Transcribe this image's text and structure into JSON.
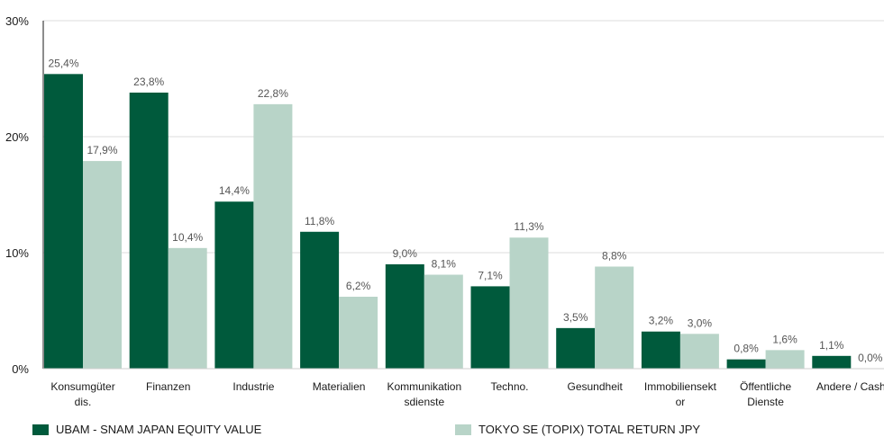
{
  "chart_data": {
    "type": "bar",
    "categories": [
      [
        "Konsumgüter",
        "dis."
      ],
      [
        "Finanzen"
      ],
      [
        "Industrie"
      ],
      [
        "Materialien"
      ],
      [
        "Kommunikation",
        "sdienste"
      ],
      [
        "Techno."
      ],
      [
        "Gesundheit"
      ],
      [
        "Immobiliensekt",
        "or"
      ],
      [
        "Öffentliche",
        "Dienste"
      ],
      [
        "Andere / Cash"
      ]
    ],
    "series": [
      {
        "name": "UBAM - SNAM JAPAN EQUITY VALUE",
        "color": "#005a3c",
        "values": [
          25.4,
          23.8,
          14.4,
          11.8,
          9.0,
          7.1,
          3.5,
          3.2,
          0.8,
          1.1
        ],
        "labels": [
          "25,4%",
          "23,8%",
          "14,4%",
          "11,8%",
          "9,0%",
          "7,1%",
          "3,5%",
          "3,2%",
          "0,8%",
          "1,1%"
        ]
      },
      {
        "name": "TOKYO SE (TOPIX) TOTAL RETURN JPY",
        "color": "#b8d4c8",
        "values": [
          17.9,
          10.4,
          22.8,
          6.2,
          8.1,
          11.3,
          8.8,
          3.0,
          1.6,
          0.0
        ],
        "labels": [
          "17,9%",
          "10,4%",
          "22,8%",
          "6,2%",
          "8,1%",
          "11,3%",
          "8,8%",
          "3,0%",
          "1,6%",
          "0,0%"
        ]
      }
    ],
    "ylim": [
      0,
      30
    ],
    "yticks": [
      0,
      10,
      20,
      30
    ],
    "ytick_labels": [
      "0%",
      "10%",
      "20%",
      "30%"
    ],
    "grid": true,
    "legend_position": "bottom",
    "title": "",
    "xlabel": "",
    "ylabel": ""
  }
}
